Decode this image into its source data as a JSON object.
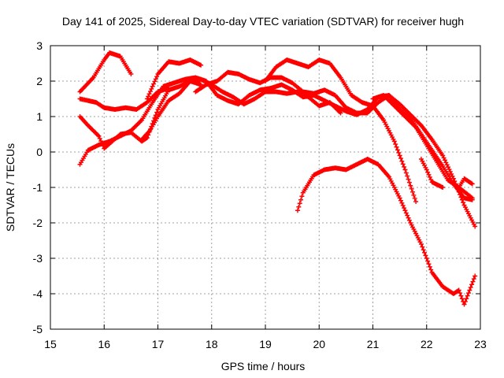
{
  "chart_data": {
    "type": "scatter",
    "title": "Day 141 of 2025, Sidereal Day-to-day VTEC variation (SDTVAR) for receiver hugh",
    "xlabel": "GPS time / hours",
    "ylabel": "SDTVAR / TECUs",
    "xlim": [
      15,
      23
    ],
    "ylim": [
      -5,
      3
    ],
    "xticks": [
      "15",
      "16",
      "17",
      "18",
      "19",
      "20",
      "21",
      "22",
      "23"
    ],
    "yticks": [
      "3",
      "2",
      "1",
      "0",
      "-1",
      "-2",
      "-3",
      "-4",
      "-5"
    ],
    "grid": true,
    "marker": "+",
    "color": "#ff0000",
    "series": [
      {
        "name": "s1",
        "x": [
          15.55,
          15.8,
          16.0,
          16.1,
          16.3,
          16.5
        ],
        "y": [
          1.7,
          2.1,
          2.6,
          2.8,
          2.7,
          2.2
        ]
      },
      {
        "name": "s2",
        "x": [
          15.55,
          15.7,
          15.85,
          16.0,
          16.2,
          16.4,
          16.6,
          16.8,
          17.0,
          17.2
        ],
        "y": [
          1.5,
          1.45,
          1.4,
          1.25,
          1.2,
          1.25,
          1.2,
          1.4,
          1.7,
          1.8
        ]
      },
      {
        "name": "s3",
        "x": [
          15.55,
          15.7,
          15.9,
          16.0,
          16.15,
          16.3,
          16.5,
          16.7,
          16.8,
          17.0,
          17.2,
          17.4,
          17.6,
          17.8,
          18.0,
          18.2,
          18.4,
          18.6,
          18.8,
          19.0,
          19.2,
          19.4,
          19.6,
          19.8,
          20.0,
          20.2,
          20.4
        ],
        "y": [
          1.0,
          0.75,
          0.45,
          0.1,
          0.3,
          0.5,
          0.55,
          0.3,
          0.4,
          1.2,
          1.75,
          1.85,
          2.0,
          2.05,
          1.9,
          1.7,
          1.55,
          1.35,
          1.5,
          1.7,
          1.7,
          1.65,
          1.7,
          1.55,
          1.3,
          1.4,
          1.1
        ]
      },
      {
        "name": "s4",
        "x": [
          15.55,
          15.7,
          15.9,
          16.1,
          16.3,
          16.5,
          16.7,
          16.9,
          17.1,
          17.3,
          17.5,
          17.7,
          17.9,
          18.1,
          18.3,
          18.5,
          18.7,
          18.9,
          19.1,
          19.3,
          19.5,
          19.7,
          19.9,
          20.1,
          20.3,
          20.5,
          20.7,
          20.9,
          21.1,
          21.3,
          21.5,
          21.7,
          21.9,
          22.1,
          22.3,
          22.5,
          22.7,
          22.85
        ],
        "y": [
          -0.35,
          0.05,
          0.2,
          0.3,
          0.45,
          0.6,
          0.9,
          1.4,
          1.85,
          1.95,
          2.05,
          2.1,
          2.0,
          1.6,
          1.45,
          1.35,
          1.6,
          1.75,
          1.8,
          1.9,
          1.75,
          1.55,
          1.6,
          1.45,
          1.3,
          1.15,
          1.05,
          1.2,
          1.55,
          1.6,
          1.2,
          0.95,
          0.5,
          0.05,
          -0.4,
          -0.9,
          -1.3,
          -1.35
        ]
      },
      {
        "name": "s5",
        "x": [
          16.7,
          16.85,
          17.0,
          17.2,
          17.4,
          17.6,
          17.8
        ],
        "y": [
          0.35,
          0.6,
          1.0,
          1.45,
          1.65,
          2.0,
          1.9
        ]
      },
      {
        "name": "s6",
        "x": [
          16.8,
          17.0,
          17.2,
          17.4,
          17.6,
          17.8
        ],
        "y": [
          1.5,
          2.2,
          2.55,
          2.5,
          2.6,
          2.45
        ]
      },
      {
        "name": "s7",
        "x": [
          17.7,
          17.9,
          18.1,
          18.3,
          18.5,
          18.7,
          18.9,
          19.1,
          19.3,
          19.5,
          19.7,
          19.9,
          20.1,
          20.3,
          20.5,
          20.7,
          20.9,
          21.1,
          21.3,
          21.5,
          21.7,
          21.9,
          22.1,
          22.3,
          22.5,
          22.7,
          22.9
        ],
        "y": [
          1.7,
          1.9,
          2.0,
          2.25,
          2.2,
          2.05,
          1.95,
          2.1,
          2.1,
          1.95,
          1.7,
          1.65,
          1.75,
          1.6,
          1.25,
          1.1,
          1.1,
          1.4,
          1.6,
          1.35,
          1.05,
          0.75,
          0.35,
          -0.1,
          -0.75,
          -1.5,
          -2.1
        ]
      },
      {
        "name": "s8",
        "x": [
          19.0,
          19.2,
          19.4,
          19.6,
          19.8,
          20.0,
          20.2,
          20.4,
          20.6,
          20.8,
          21.0,
          21.2,
          21.4,
          21.6,
          21.8
        ],
        "y": [
          2.0,
          2.4,
          2.6,
          2.5,
          2.4,
          2.6,
          2.5,
          2.1,
          1.6,
          1.4,
          1.3,
          0.9,
          0.3,
          -0.5,
          -1.4
        ]
      },
      {
        "name": "s9",
        "x": [
          21.0,
          21.2,
          21.4,
          21.6,
          21.8,
          22.0,
          22.2,
          22.4,
          22.6,
          22.85
        ],
        "y": [
          1.5,
          1.6,
          1.3,
          1.0,
          0.7,
          0.2,
          -0.3,
          -0.8,
          -1.0,
          -1.3
        ]
      },
      {
        "name": "s10",
        "x": [
          19.6,
          19.7,
          19.9,
          20.1,
          20.3,
          20.5,
          20.7,
          20.9,
          21.1,
          21.3,
          21.5,
          21.7,
          21.9,
          22.1,
          22.3,
          22.5,
          22.6,
          22.7,
          22.9
        ],
        "y": [
          -1.65,
          -1.15,
          -0.65,
          -0.5,
          -0.45,
          -0.5,
          -0.35,
          -0.2,
          -0.35,
          -0.7,
          -1.3,
          -2.0,
          -2.6,
          -3.4,
          -3.8,
          -4.0,
          -3.9,
          -4.3,
          -3.5
        ]
      },
      {
        "name": "s11",
        "x": [
          21.9,
          22.0,
          22.1,
          22.3
        ],
        "y": [
          -0.2,
          -0.5,
          -0.85,
          -1.0
        ]
      },
      {
        "name": "s12",
        "x": [
          22.6,
          22.7,
          22.85
        ],
        "y": [
          -1.0,
          -0.75,
          -0.9
        ]
      }
    ]
  }
}
